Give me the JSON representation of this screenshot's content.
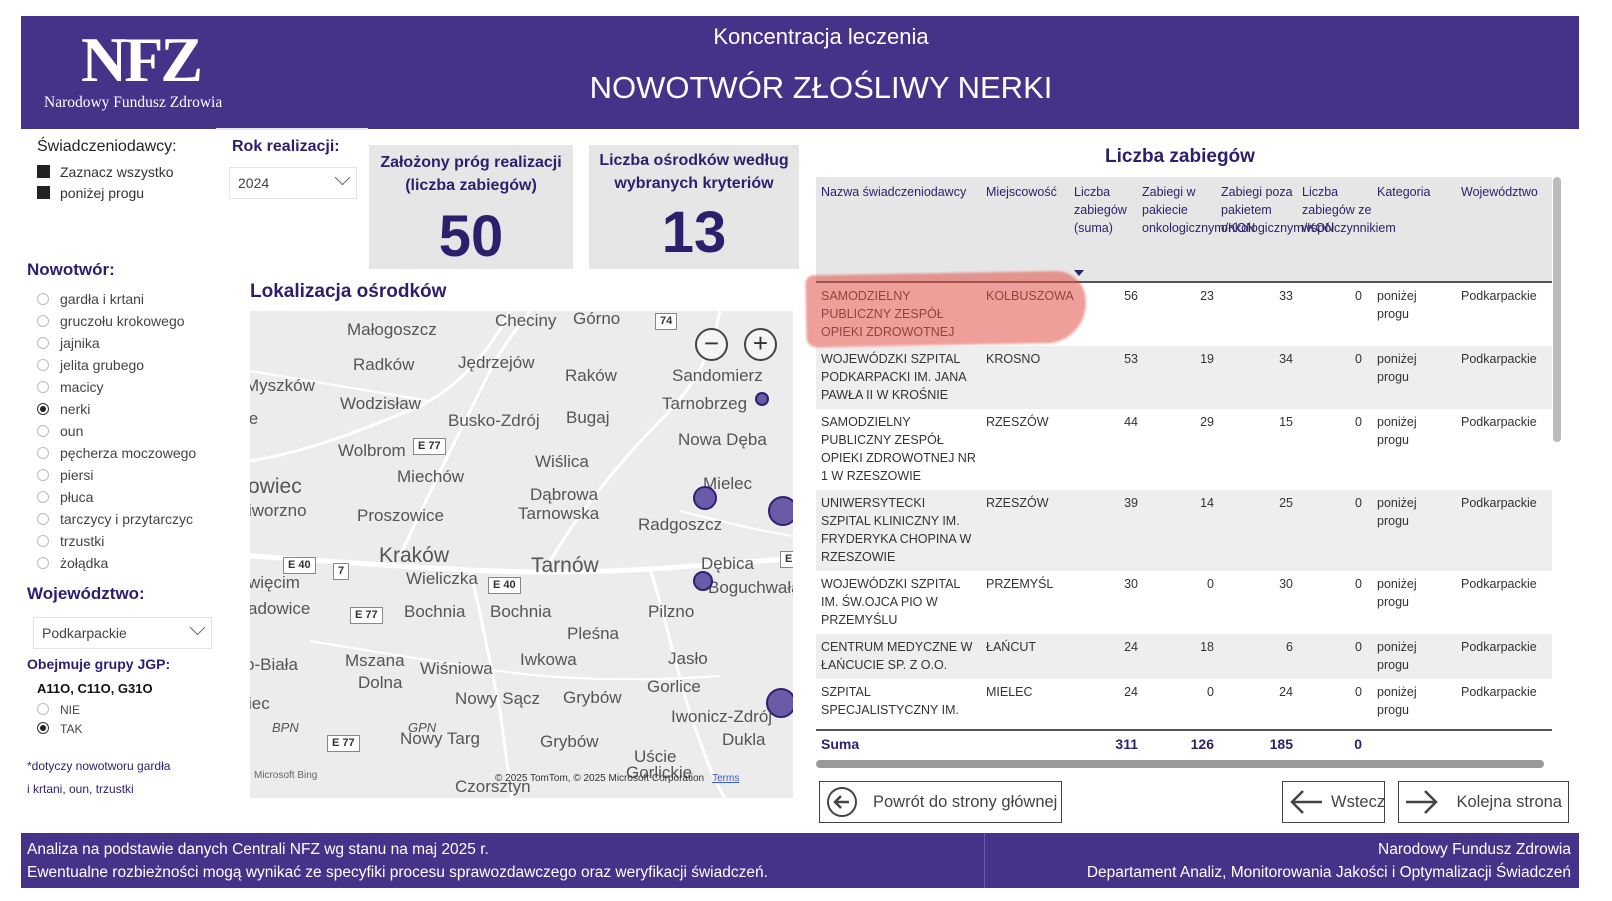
{
  "header": {
    "logo": "NFZ",
    "logo_subtitle": "Narodowy Fundusz Zdrowia",
    "subtitle": "Koncentracja leczenia",
    "title": "NOWOTWÓR ZŁOŚLIWY NERKI"
  },
  "filters": {
    "providers_title": "Świadczeniodawcy:",
    "providers_items": [
      "Zaznacz wszystko",
      "poniżej progu"
    ],
    "year_title": "Rok realizacji:",
    "year_value": "2024",
    "cancer_title": "Nowotwór:",
    "cancer_items": [
      "gardła i krtani",
      "gruczołu krokowego",
      "jajnika",
      "jelita grubego",
      "macicy",
      "nerki",
      "oun",
      "pęcherza moczowego",
      "piersi",
      "płuca",
      "tarczycy i przytarczyc",
      "trzustki",
      "żołądka"
    ],
    "cancer_selected": "nerki",
    "voivodeship_title": "Województwo:",
    "voivodeship_value": "Podkarpackie",
    "jgp_title": "Obejmuje grupy JGP:",
    "jgp_groups": "A11O, C11O, G31O",
    "jgp_options": [
      "NIE",
      "TAK"
    ],
    "jgp_selected": "TAK",
    "note_line1": "*dotyczy nowotworu gardła",
    "note_line2": "i krtani, oun,  trzustki"
  },
  "cards": {
    "threshold_label": "Założony próg realizacji (liczba zabiegów)",
    "threshold_value": "50",
    "centers_label": "Liczba ośrodków według wybranych kryteriów",
    "centers_value": "13"
  },
  "map": {
    "title": "Lokalizacja ośrodków",
    "zoom_out": "−",
    "zoom_in": "+",
    "attribution": "© 2025 TomTom, © 2025 Microsoft Corporation",
    "terms": "Terms",
    "bing": "Microsoft Bing",
    "places": [
      "Checiny",
      "Górno",
      "Małogoszcz",
      "Radków",
      "Jędrzejów",
      "Raków",
      "Sandomierz",
      "Myszków",
      "Wodzisław",
      "Busko-Zdrój",
      "Bugaj",
      "Tarnobrzeg",
      "Nowa Dęba",
      "Wolbrom",
      "Wiślica",
      "Miechów",
      "Mielec",
      "Dąbrowa",
      "Tarnowska",
      "Radgoszcz",
      "Proszowice",
      "Kraków",
      "Tarnów",
      "Dębica",
      "Boguchwała",
      "Wieliczka",
      "Bochnia",
      "Bochnia",
      "Pilzno",
      "Pleśna",
      "Mszana",
      "Dolna",
      "Wiśniowa",
      "Iwkowa",
      "Jasło",
      "Gorlice",
      "Nowy Sącz",
      "Grybów",
      "Iwonicz-Zdrój",
      "Nowy Targ",
      "Grybów",
      "Dukla",
      "Uście",
      "Gorlickie",
      "Czorsztyn",
      "owiec",
      "iworzno",
      "więcim",
      "adowice",
      "o-Biała",
      "iec",
      "BPN",
      "GPN",
      "ie"
    ],
    "roads": [
      "74",
      "E 77",
      "E 40",
      "7",
      "E 40",
      "E 77",
      "E 77",
      "E"
    ]
  },
  "table": {
    "title": "Liczba zabiegów",
    "columns": [
      "Nazwa świadczeniodawcy",
      "Miejscowość",
      "Liczba zabiegów (suma)",
      "Zabiegi w pakiecie onkologicznym/KON",
      "Zabiegi poza pakietem onkologicznym/KON",
      "Liczba zabiegów ze współczynnikiem",
      "Kategoria",
      "Województwo"
    ],
    "rows": [
      {
        "name": "SAMODZIELNY PUBLICZNY ZESPÓŁ OPIEKI ZDROWOTNEJ",
        "city": "KOLBUSZOWA",
        "total": "56",
        "in": "23",
        "out": "33",
        "coef": "0",
        "cat": "poniżej progu",
        "voiv": "Podkarpackie"
      },
      {
        "name": "WOJEWÓDZKI SZPITAL PODKARPACKI IM. JANA PAWŁA II W KROŚNIE",
        "city": "KROSNO",
        "total": "53",
        "in": "19",
        "out": "34",
        "coef": "0",
        "cat": "poniżej progu",
        "voiv": "Podkarpackie"
      },
      {
        "name": "SAMODZIELNY PUBLICZNY ZESPÓŁ OPIEKI ZDROWOTNEJ NR 1 W RZESZOWIE",
        "city": "RZESZÓW",
        "total": "44",
        "in": "29",
        "out": "15",
        "coef": "0",
        "cat": "poniżej progu",
        "voiv": "Podkarpackie"
      },
      {
        "name": "UNIWERSYTECKI SZPITAL KLINICZNY IM. FRYDERYKA CHOPINA W RZESZOWIE",
        "city": "RZESZÓW",
        "total": "39",
        "in": "14",
        "out": "25",
        "coef": "0",
        "cat": "poniżej progu",
        "voiv": "Podkarpackie"
      },
      {
        "name": "WOJEWÓDZKI SZPITAL IM. ŚW.OJCA PIO W PRZEMYŚLU",
        "city": "PRZEMYŚL",
        "total": "30",
        "in": "0",
        "out": "30",
        "coef": "0",
        "cat": "poniżej progu",
        "voiv": "Podkarpackie"
      },
      {
        "name": "CENTRUM MEDYCZNE W ŁAŃCUCIE SP. Z O.O.",
        "city": "ŁAŃCUT",
        "total": "24",
        "in": "18",
        "out": "6",
        "coef": "0",
        "cat": "poniżej progu",
        "voiv": "Podkarpackie"
      },
      {
        "name": "SZPITAL SPECJALISTYCZNY IM.",
        "city": "MIELEC",
        "total": "24",
        "in": "0",
        "out": "24",
        "coef": "0",
        "cat": "poniżej progu",
        "voiv": "Podkarpackie"
      }
    ],
    "sum_label": "Suma",
    "sum_total": "311",
    "sum_in": "126",
    "sum_out": "185",
    "sum_coef": "0"
  },
  "nav": {
    "home": "Powrót do strony głównej",
    "back": "Wstecz",
    "next": "Kolejna strona"
  },
  "footer": {
    "left_line1": "Analiza na podstawie danych Centrali NFZ wg stanu na maj 2025 r.",
    "left_line2": "Ewentualne rozbieżności mogą wynikać ze specyfiki procesu sprawozdawczego oraz weryfikacji świadczeń.",
    "right_line1": "Narodowy Fundusz Zdrowia",
    "right_line2": "Departament Analiz, Monitorowania Jakości i Optymalizacji Świadczeń"
  },
  "colors": {
    "brand": "#45338a",
    "highlight": "#e15046"
  }
}
